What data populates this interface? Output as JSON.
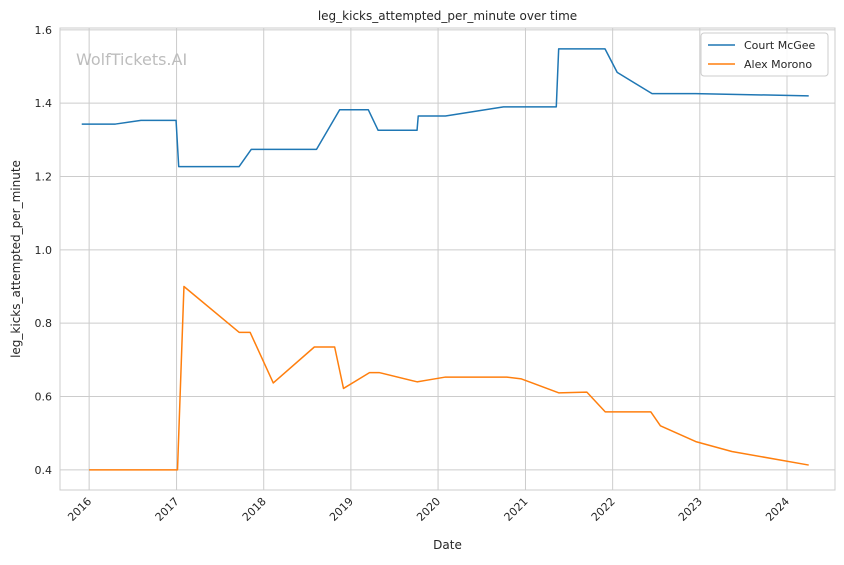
{
  "chart_data": {
    "type": "line",
    "title": "leg_kicks_attempted_per_minute over time",
    "xlabel": "Date",
    "ylabel": "leg_kicks_attempted_per_minute",
    "xlim": [
      "2015-09-01",
      "2024-07-20"
    ],
    "ylim": [
      0.345,
      1.605
    ],
    "x_ticks": [
      "2016",
      "2017",
      "2018",
      "2019",
      "2020",
      "2021",
      "2022",
      "2023",
      "2024"
    ],
    "y_ticks": [
      "0.4",
      "0.6",
      "0.8",
      "1.0",
      "1.2",
      "1.4",
      "1.6"
    ],
    "grid": true,
    "legend_position": "top-right",
    "watermark": "WolfTickets.AI",
    "series": [
      {
        "name": "Court McGee",
        "color": "#1f77b4",
        "points": [
          [
            "2015-12-01",
            1.343
          ],
          [
            "2016-04-20",
            1.343
          ],
          [
            "2016-08-05",
            1.353
          ],
          [
            "2016-12-30",
            1.353
          ],
          [
            "2017-01-10",
            1.227
          ],
          [
            "2017-09-20",
            1.227
          ],
          [
            "2017-11-10",
            1.274
          ],
          [
            "2018-08-10",
            1.274
          ],
          [
            "2018-11-15",
            1.382
          ],
          [
            "2019-03-15",
            1.382
          ],
          [
            "2019-04-25",
            1.326
          ],
          [
            "2019-10-05",
            1.326
          ],
          [
            "2019-10-10",
            1.365
          ],
          [
            "2020-02-01",
            1.365
          ],
          [
            "2020-10-01",
            1.39
          ],
          [
            "2021-05-10",
            1.39
          ],
          [
            "2021-05-20",
            1.548
          ],
          [
            "2021-11-30",
            1.548
          ],
          [
            "2022-01-20",
            1.484
          ],
          [
            "2022-06-15",
            1.426
          ],
          [
            "2022-12-15",
            1.426
          ],
          [
            "2024-04-01",
            1.42
          ]
        ]
      },
      {
        "name": "Alex Morono",
        "color": "#ff7f0e",
        "points": [
          [
            "2016-01-01",
            0.4
          ],
          [
            "2017-01-05",
            0.4
          ],
          [
            "2017-02-01",
            0.9
          ],
          [
            "2017-09-20",
            0.775
          ],
          [
            "2017-11-05",
            0.775
          ],
          [
            "2018-02-10",
            0.637
          ],
          [
            "2018-08-01",
            0.735
          ],
          [
            "2018-10-25",
            0.735
          ],
          [
            "2018-12-01",
            0.622
          ],
          [
            "2019-03-20",
            0.665
          ],
          [
            "2019-05-01",
            0.665
          ],
          [
            "2019-10-05",
            0.64
          ],
          [
            "2020-02-01",
            0.653
          ],
          [
            "2020-10-15",
            0.653
          ],
          [
            "2020-12-15",
            0.648
          ],
          [
            "2021-05-20",
            0.61
          ],
          [
            "2021-09-15",
            0.612
          ],
          [
            "2021-12-01",
            0.558
          ],
          [
            "2022-06-10",
            0.558
          ],
          [
            "2022-07-20",
            0.52
          ],
          [
            "2022-12-15",
            0.477
          ],
          [
            "2023-05-15",
            0.45
          ],
          [
            "2024-04-01",
            0.413
          ]
        ]
      }
    ]
  }
}
